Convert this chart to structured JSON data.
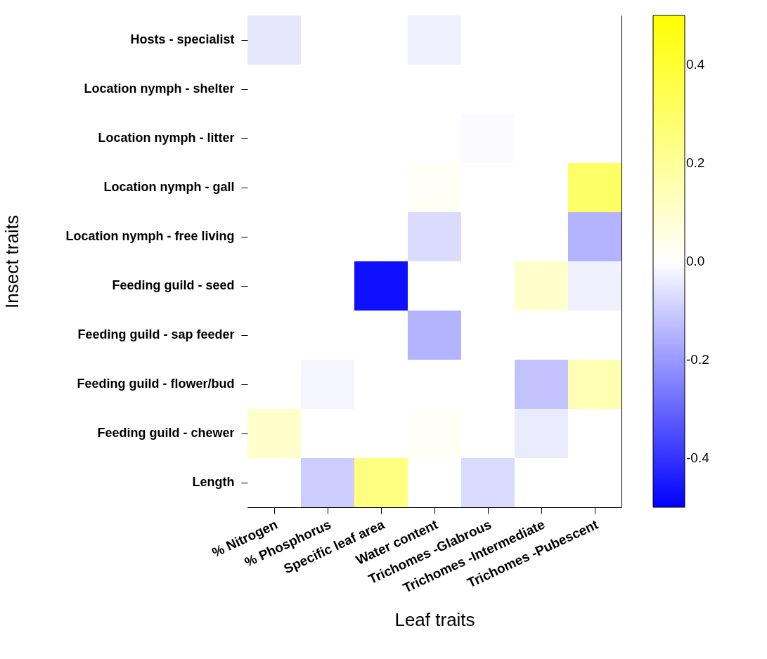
{
  "chart_data": {
    "type": "heatmap",
    "xlabel": "Leaf traits",
    "ylabel": "Insect traits",
    "categories": [
      "% Nitrogen",
      "% Phosphorus",
      "Specific leaf area",
      "Water content",
      "Trichomes -Glabrous",
      "Trichomes -Intermediate",
      "Trichomes -Pubescent"
    ],
    "y_categories": [
      "Hosts - specialist",
      "Location nymph - shelter",
      "Location nymph - litter",
      "Location nymph - gall",
      "Location nymph - free living",
      "Feeding guild - seed",
      "Feeding guild - sap feeder",
      "Feeding guild - flower/bud",
      "Feeding guild - chewer",
      "Length"
    ],
    "cells": [
      [
        -0.05,
        0,
        0,
        -0.03,
        0,
        0,
        0
      ],
      [
        0,
        0,
        0,
        0,
        0,
        0,
        0
      ],
      [
        0,
        0,
        0,
        0,
        -0.01,
        0,
        0
      ],
      [
        0,
        0,
        0,
        0.02,
        0,
        0,
        0.3
      ],
      [
        0,
        0,
        0,
        -0.07,
        0,
        0,
        -0.15
      ],
      [
        0,
        0,
        -0.47,
        0,
        0,
        0.1,
        -0.03
      ],
      [
        0,
        0,
        0,
        -0.15,
        0,
        0,
        0
      ],
      [
        0,
        -0.02,
        0,
        0,
        0,
        -0.12,
        0.15
      ],
      [
        0.1,
        0,
        0,
        0.02,
        0,
        -0.04,
        0
      ],
      [
        0,
        -0.1,
        0.25,
        0,
        -0.07,
        0,
        0
      ]
    ],
    "clim": [
      -0.5,
      0.5
    ],
    "cticks": [
      {
        "value": -0.4,
        "label": "-0.4"
      },
      {
        "value": -0.2,
        "label": "-0.2"
      },
      {
        "value": 0,
        "label": "0.0"
      },
      {
        "value": 0.2,
        "label": "0.2"
      },
      {
        "value": 0.4,
        "label": "0.4"
      }
    ],
    "grid": false
  }
}
